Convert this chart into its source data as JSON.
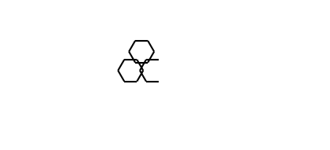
{
  "bg_color": "#ffffff",
  "line_color": "#000000",
  "atom_color": "#000000",
  "N_color": "#0000cd",
  "O_color": "#008080",
  "F_color": "#000000",
  "line_width": 1.5,
  "font_size": 9,
  "figsize": [
    4.2,
    1.91
  ],
  "dpi": 100
}
